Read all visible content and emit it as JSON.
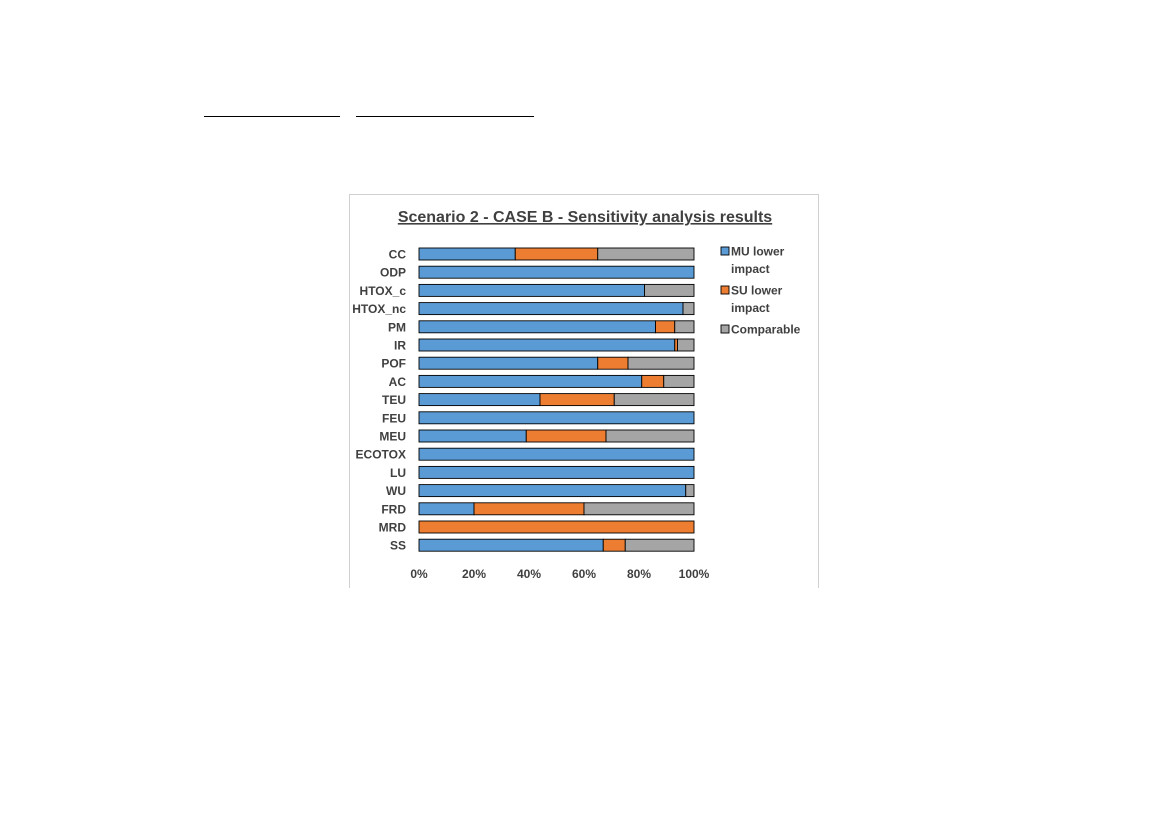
{
  "colors": {
    "mu": "#5b9bd5",
    "su": "#ed7d31",
    "comparable": "#a5a5a5",
    "text": "#404040",
    "bar_edge": "#000000"
  },
  "chart_data": {
    "type": "bar",
    "orientation": "horizontal",
    "stacked": "100%",
    "title": "Scenario 2 - CASE B - Sensitivity analysis results",
    "categories": [
      "CC",
      "ODP",
      "HTOX_c",
      "HTOX_nc",
      "PM",
      "IR",
      "POF",
      "AC",
      "TEU",
      "FEU",
      "MEU",
      "ECOTOX",
      "LU",
      "WU",
      "FRD",
      "MRD",
      "SS"
    ],
    "series": [
      {
        "name": "MU lower impact",
        "color": "#5b9bd5",
        "values": [
          35,
          100,
          82,
          96,
          86,
          93,
          65,
          81,
          44,
          100,
          39,
          100,
          100,
          97,
          20,
          0,
          67
        ]
      },
      {
        "name": "SU lower impact",
        "color": "#ed7d31",
        "values": [
          30,
          0,
          0,
          0,
          7,
          1,
          11,
          8,
          27,
          0,
          29,
          0,
          0,
          0,
          40,
          100,
          8
        ]
      },
      {
        "name": "Comparable",
        "color": "#a5a5a5",
        "values": [
          35,
          0,
          18,
          4,
          7,
          6,
          24,
          11,
          29,
          0,
          32,
          0,
          0,
          3,
          40,
          0,
          25
        ]
      }
    ],
    "x_ticks": [
      "0%",
      "20%",
      "40%",
      "60%",
      "80%",
      "100%"
    ],
    "xlim": [
      0,
      100
    ],
    "xlabel": "",
    "ylabel": "",
    "grid": false,
    "legend_position": "right"
  }
}
